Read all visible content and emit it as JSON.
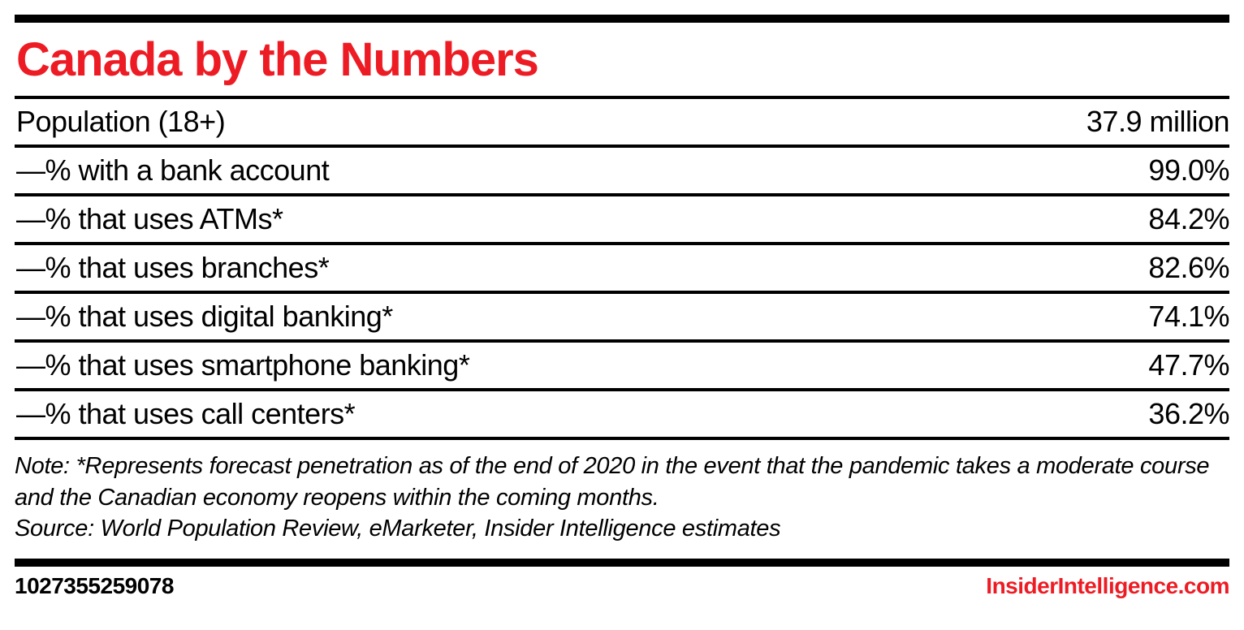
{
  "title": "Canada by the Numbers",
  "colors": {
    "accent": "#ed1c24",
    "rule": "#000000",
    "background": "#ffffff"
  },
  "chart_data": {
    "type": "table",
    "title": "Canada by the Numbers",
    "rows": [
      {
        "label": "Population (18+)",
        "value": "37.9 million"
      },
      {
        "label": "—% with a bank account",
        "value": "99.0%"
      },
      {
        "label": "—% that uses ATMs*",
        "value": "84.2%"
      },
      {
        "label": "—% that uses branches*",
        "value": "82.6%"
      },
      {
        "label": "—% that uses digital banking*",
        "value": "74.1%"
      },
      {
        "label": "—% that uses smartphone banking*",
        "value": "47.7%"
      },
      {
        "label": "—% that uses call centers*",
        "value": "36.2%"
      }
    ],
    "numeric_values": {
      "population_millions": 37.9,
      "with_bank_account_pct": 99.0,
      "uses_atms_pct": 84.2,
      "uses_branches_pct": 82.6,
      "uses_digital_banking_pct": 74.1,
      "uses_smartphone_banking_pct": 47.7,
      "uses_call_centers_pct": 36.2
    },
    "note": "Note: *Represents forecast penetration as of the end of 2020 in the event that the pandemic takes a moderate course and the Canadian economy reopens within the coming months.",
    "source": "Source: World Population Review, eMarketer, Insider Intelligence estimates"
  },
  "footer": {
    "chart_id": "1027355259078",
    "site": "InsiderIntelligence.com"
  }
}
